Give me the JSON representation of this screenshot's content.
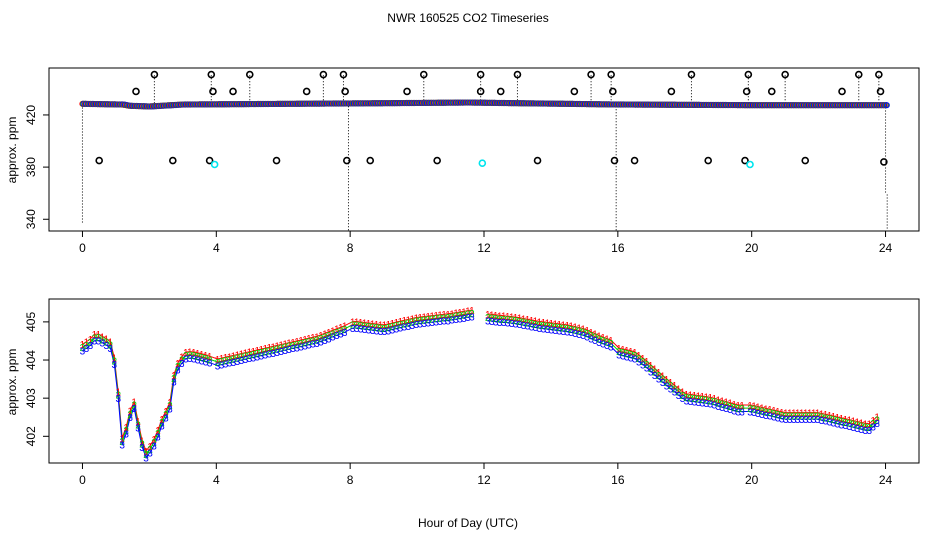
{
  "title": "NWR  160525  CO2 Timeseries",
  "xlabel": "Hour of Day (UTC)",
  "colors": {
    "series1": "#ff0000",
    "series2": "#00cc00",
    "series3": "#0000ff",
    "outlier": "#000000",
    "flagged": "#00e5ee"
  },
  "chart_data": [
    {
      "type": "scatter",
      "title": "",
      "xlabel": "",
      "ylabel": "approx. ppm",
      "xlim": [
        -1,
        25
      ],
      "ylim": [
        331,
        456
      ],
      "xticks": [
        0,
        4,
        8,
        12,
        16,
        20,
        24
      ],
      "yticks": [
        340,
        380,
        420
      ],
      "baseline": [
        [
          0.0,
          428.5
        ],
        [
          1.2,
          428
        ],
        [
          1.4,
          427
        ],
        [
          2.0,
          426.5
        ],
        [
          3.0,
          428
        ],
        [
          6.0,
          428.5
        ],
        [
          9.0,
          429
        ],
        [
          11.5,
          429.5
        ],
        [
          13.0,
          429
        ],
        [
          16.0,
          428
        ],
        [
          20.0,
          427.5
        ],
        [
          24.0,
          427.5
        ]
      ],
      "flagged_points": [
        [
          3.95,
          382
        ],
        [
          11.95,
          383
        ],
        [
          19.95,
          382
        ]
      ],
      "outlier_points": [
        [
          2.15,
          451
        ],
        [
          3.85,
          451
        ],
        [
          5.0,
          451
        ],
        [
          7.2,
          451
        ],
        [
          7.8,
          451
        ],
        [
          10.2,
          451
        ],
        [
          11.9,
          451
        ],
        [
          13.0,
          451
        ],
        [
          15.2,
          451
        ],
        [
          15.8,
          451
        ],
        [
          18.2,
          451
        ],
        [
          19.9,
          451
        ],
        [
          21.0,
          451
        ],
        [
          23.2,
          451
        ],
        [
          23.8,
          451
        ],
        [
          1.6,
          438
        ],
        [
          3.9,
          438
        ],
        [
          4.5,
          438
        ],
        [
          6.7,
          438
        ],
        [
          7.85,
          438
        ],
        [
          9.7,
          438
        ],
        [
          11.9,
          438
        ],
        [
          12.5,
          438
        ],
        [
          14.7,
          438
        ],
        [
          15.85,
          438
        ],
        [
          17.6,
          438
        ],
        [
          19.85,
          438
        ],
        [
          20.6,
          438
        ],
        [
          22.7,
          438
        ],
        [
          23.85,
          438
        ],
        [
          0.5,
          385
        ],
        [
          2.7,
          385
        ],
        [
          3.8,
          385
        ],
        [
          5.8,
          385
        ],
        [
          7.9,
          385
        ],
        [
          8.6,
          385
        ],
        [
          10.6,
          385
        ],
        [
          13.6,
          385
        ],
        [
          15.9,
          385
        ],
        [
          16.5,
          385
        ],
        [
          18.7,
          385
        ],
        [
          19.8,
          385
        ],
        [
          21.6,
          385
        ],
        [
          23.95,
          384
        ]
      ],
      "dotted_segments": [
        [
          0,
          428,
          337
        ],
        [
          2.15,
          429,
          451
        ],
        [
          3.85,
          429,
          451
        ],
        [
          5.0,
          429,
          451
        ],
        [
          7.2,
          429,
          451
        ],
        [
          7.8,
          429,
          451
        ],
        [
          7.95,
          429,
          331
        ],
        [
          10.2,
          429,
          451
        ],
        [
          11.9,
          429,
          451
        ],
        [
          13.0,
          429,
          451
        ],
        [
          15.2,
          429,
          451
        ],
        [
          15.8,
          429,
          451
        ],
        [
          15.95,
          429,
          331
        ],
        [
          18.2,
          429,
          451
        ],
        [
          19.9,
          429,
          451
        ],
        [
          21.0,
          429,
          451
        ],
        [
          23.2,
          429,
          451
        ],
        [
          23.8,
          429,
          451
        ],
        [
          24.0,
          428,
          359
        ],
        [
          24.05,
          359,
          331
        ]
      ]
    },
    {
      "type": "line",
      "title": "",
      "xlabel": "",
      "ylabel": "approx. ppm",
      "xlim": [
        -1,
        25
      ],
      "ylim": [
        401.3,
        405.6
      ],
      "xticks": [
        0,
        4,
        8,
        12,
        16,
        20,
        24
      ],
      "yticks": [
        402,
        403,
        404,
        405
      ],
      "series_labels": [
        "1",
        "2",
        "3"
      ],
      "gaps": [
        [
          3.8,
          4.0
        ],
        [
          7.95,
          8.05
        ],
        [
          11.75,
          12.0
        ],
        [
          15.85,
          16.0
        ],
        [
          19.75,
          19.95
        ]
      ],
      "profile": [
        [
          0.0,
          404.3
        ],
        [
          0.2,
          404.4
        ],
        [
          0.4,
          404.6
        ],
        [
          0.6,
          404.5
        ],
        [
          0.8,
          404.4
        ],
        [
          0.9,
          404.3
        ],
        [
          1.0,
          403.6
        ],
        [
          1.1,
          402.8
        ],
        [
          1.2,
          401.7
        ],
        [
          1.4,
          402.5
        ],
        [
          1.55,
          402.8
        ],
        [
          1.7,
          402.1
        ],
        [
          1.8,
          401.7
        ],
        [
          1.9,
          401.5
        ],
        [
          2.0,
          401.6
        ],
        [
          2.2,
          401.9
        ],
        [
          2.4,
          402.4
        ],
        [
          2.6,
          402.7
        ],
        [
          2.75,
          403.6
        ],
        [
          2.9,
          403.9
        ],
        [
          3.1,
          404.1
        ],
        [
          3.3,
          404.1
        ],
        [
          3.75,
          404.0
        ],
        [
          4.0,
          403.9
        ],
        [
          5.0,
          404.1
        ],
        [
          6.0,
          404.3
        ],
        [
          7.0,
          404.5
        ],
        [
          7.9,
          404.8
        ],
        [
          8.1,
          404.9
        ],
        [
          9.0,
          404.8
        ],
        [
          10.0,
          405.0
        ],
        [
          11.0,
          405.1
        ],
        [
          11.7,
          405.2
        ],
        [
          12.0,
          405.1
        ],
        [
          13.0,
          405.0
        ],
        [
          13.6,
          404.9
        ],
        [
          14.5,
          404.8
        ],
        [
          15.0,
          404.7
        ],
        [
          15.5,
          404.5
        ],
        [
          15.8,
          404.4
        ],
        [
          16.0,
          404.2
        ],
        [
          16.5,
          404.1
        ],
        [
          16.8,
          403.9
        ],
        [
          17.3,
          403.5
        ],
        [
          18.0,
          403.0
        ],
        [
          18.8,
          402.9
        ],
        [
          19.6,
          402.7
        ],
        [
          20.0,
          402.7
        ],
        [
          21.0,
          402.5
        ],
        [
          22.0,
          402.5
        ],
        [
          23.0,
          402.3
        ],
        [
          23.5,
          402.2
        ],
        [
          23.75,
          402.4
        ]
      ]
    }
  ]
}
